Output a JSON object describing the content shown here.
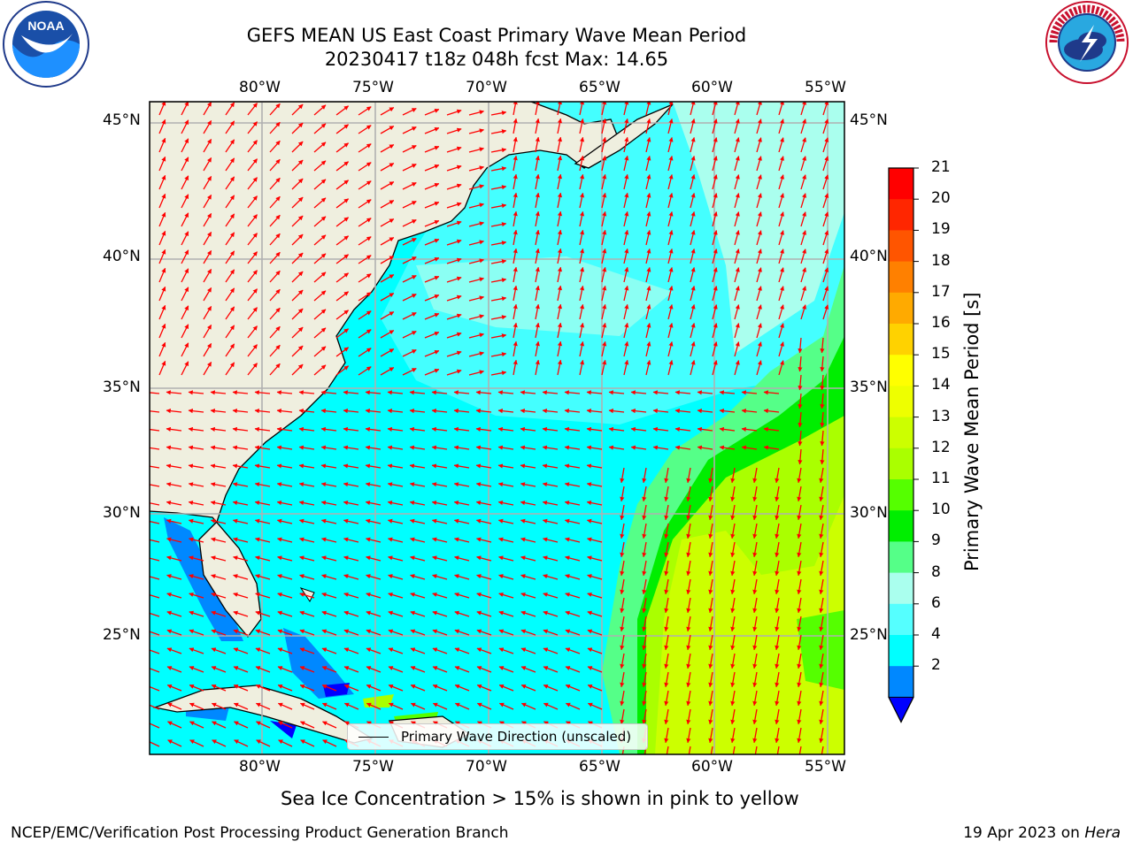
{
  "title": {
    "line1": "GEFS MEAN US East Coast Primary Wave Mean Period",
    "line2": "20230417 t18z 048h fcst   Max: 14.65"
  },
  "logos": {
    "left": "noaa-logo",
    "right": "nws-logo"
  },
  "axes": {
    "lon_ticks": [
      "80°W",
      "75°W",
      "70°W",
      "65°W",
      "60°W",
      "55°W"
    ],
    "lat_ticks": [
      "45°N",
      "40°N",
      "35°N",
      "30°N",
      "25°N"
    ],
    "lon_range": [
      -85,
      -54.3
    ],
    "lat_range": [
      20.5,
      45.8
    ]
  },
  "colorbar": {
    "label": "Primary Wave Mean Period [s]",
    "ticks": [
      "21",
      "20",
      "19",
      "18",
      "17",
      "16",
      "15",
      "14",
      "13",
      "12",
      "11",
      "10",
      "9",
      "8",
      "6",
      "4",
      "2"
    ],
    "colors": [
      "#ff0000",
      "#ff2600",
      "#ff5500",
      "#ff8000",
      "#ffaa00",
      "#ffd200",
      "#ffff00",
      "#eeff00",
      "#ccff00",
      "#aaff00",
      "#55ff00",
      "#00ee00",
      "#55ff88",
      "#aaffee",
      "#55ffff",
      "#00ffff",
      "#0088ff"
    ],
    "extend_color": "#0000ff"
  },
  "legend": {
    "label": "Primary Wave Direction (unscaled)"
  },
  "caption": "Sea Ice Concentration > 15% is shown in pink to yellow",
  "footer": {
    "left": "NCEP/EMC/Verification Post Processing Product Generation Branch",
    "date": "19 Apr 2023 on ",
    "machine": "Hera"
  },
  "colors": {
    "land": "#efefdf",
    "arrow": "#ff0000",
    "grid": "#b0b0b0"
  }
}
